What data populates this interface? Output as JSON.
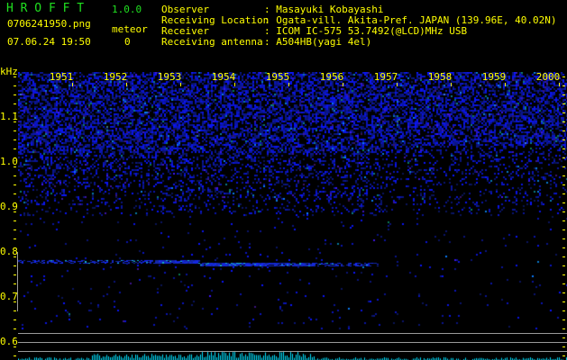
{
  "app": {
    "name": "H R O F F T",
    "version": "1.0.0"
  },
  "file": {
    "name": "0706241950.png",
    "datetime": "07.06.24 19:50"
  },
  "meteor": {
    "label": "meteor",
    "count": "0"
  },
  "info": [
    {
      "label": "Observer",
      "value": ": Masayuki Kobayashi"
    },
    {
      "label": "Receiving Location",
      "value": ": Ogata-vill. Akita-Pref. JAPAN (139.96E, 40.02N)"
    },
    {
      "label": "Receiver",
      "value": ": ICOM IC-575 53.7492(@LCD)MHz USB"
    },
    {
      "label": "Receiving antenna",
      "value": ": A504HB(yagi 4el)"
    }
  ],
  "spectrogram": {
    "y_unit": "kHz",
    "y_ticks": [
      "1.1",
      "1.0",
      "0.9",
      "0.8",
      "0.7",
      "0.6"
    ],
    "x_ticks": [
      "1951",
      "1952",
      "1953",
      "1954",
      "1955",
      "1956",
      "1957",
      "1958",
      "1959",
      "2000"
    ],
    "colors": {
      "noise": "#1020c0",
      "echo": "#2040ff",
      "bars": "#00e0ff",
      "labels": "#ffff00",
      "title": "#20e020"
    }
  }
}
